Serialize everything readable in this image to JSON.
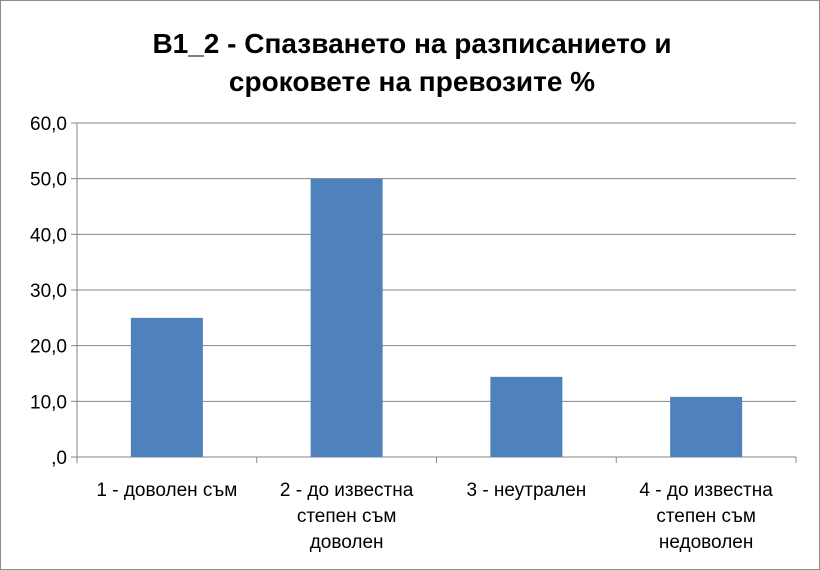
{
  "chart_data": {
    "type": "bar",
    "title_lines": [
      "B1_2 - Спазването на разписанието и",
      "сроковете на превозите %"
    ],
    "categories": [
      [
        "1 - доволен съм"
      ],
      [
        "2 - до известна",
        "степен съм",
        "доволен"
      ],
      [
        "3 - неутрален"
      ],
      [
        "4 - до известна",
        "степен съм",
        "недоволен"
      ]
    ],
    "values": [
      25.0,
      50.0,
      14.4,
      10.8
    ],
    "ylim": [
      0,
      60
    ],
    "yticks": [
      0,
      10,
      20,
      30,
      40,
      50,
      60
    ],
    "ytick_labels": [
      ",0",
      "10,0",
      "20,0",
      "30,0",
      "40,0",
      "50,0",
      "60,0"
    ],
    "grid": true,
    "bar_color": "#4f81bd",
    "grid_color": "#868686"
  }
}
